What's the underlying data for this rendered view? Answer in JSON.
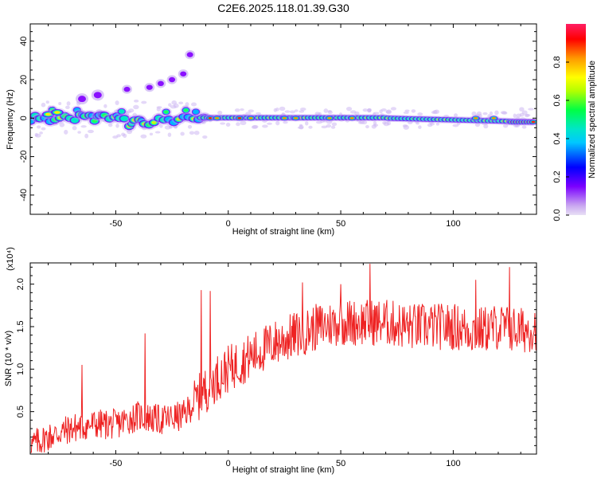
{
  "figure": {
    "title": "C2E6.2025.118.01.39.G30"
  },
  "chart_data": [
    {
      "type": "heatmap",
      "title": "C2E6.2025.118.01.39.G30",
      "xlabel": "Height of straight line (km)",
      "ylabel": "Frequency (Hz)",
      "xlim": [
        -88,
        137
      ],
      "ylim": [
        -50,
        49
      ],
      "xticks": [
        -50,
        0,
        50,
        100
      ],
      "yticks": [
        -40,
        -20,
        0,
        20,
        40
      ],
      "grid": false,
      "colorbar": {
        "label": "Normalized spectral amplitude",
        "ticks": [
          "0.0",
          "0.2",
          "0.4",
          "0.6",
          "0.8"
        ],
        "range": [
          0,
          1
        ],
        "colormap": [
          "#d6c2f0",
          "#7a00ff",
          "#0000ff",
          "#00d9ff",
          "#00ff66",
          "#ffff00",
          "#ff0000"
        ]
      },
      "features": {
        "main_band_center_hz": 0,
        "main_band_extent_km": [
          -88,
          136
        ],
        "harmonic_track": [
          {
            "x": -65,
            "y": 10
          },
          {
            "x": -58,
            "y": 12
          },
          {
            "x": -45,
            "y": 15
          },
          {
            "x": -35,
            "y": 16
          },
          {
            "x": -30,
            "y": 18
          },
          {
            "x": -25,
            "y": 20
          },
          {
            "x": -20,
            "y": 23
          },
          {
            "x": -17,
            "y": 33
          }
        ]
      }
    },
    {
      "type": "line",
      "xlabel": "Height of straight line (km)",
      "ylabel": "SNR (10 * v/v)",
      "y_multiplier": "(x10⁴)",
      "xlim": [
        -88,
        137
      ],
      "ylim": [
        0,
        2.25
      ],
      "xticks": [
        -50,
        0,
        50,
        100
      ],
      "yticks": [
        "0.5",
        "1.0",
        "1.5",
        "2.0"
      ],
      "grid": false,
      "color": "#ee2222",
      "series_envelope": [
        {
          "x": -88,
          "y": 0.1
        },
        {
          "x": -80,
          "y": 0.2
        },
        {
          "x": -70,
          "y": 0.3
        },
        {
          "x": -60,
          "y": 0.35
        },
        {
          "x": -50,
          "y": 0.35
        },
        {
          "x": -40,
          "y": 0.45
        },
        {
          "x": -30,
          "y": 0.4
        },
        {
          "x": -20,
          "y": 0.45
        },
        {
          "x": -12,
          "y": 0.7
        },
        {
          "x": -5,
          "y": 0.9
        },
        {
          "x": 0,
          "y": 1.0
        },
        {
          "x": 10,
          "y": 1.15
        },
        {
          "x": 20,
          "y": 1.3
        },
        {
          "x": 30,
          "y": 1.4
        },
        {
          "x": 40,
          "y": 1.5
        },
        {
          "x": 50,
          "y": 1.55
        },
        {
          "x": 60,
          "y": 1.55
        },
        {
          "x": 70,
          "y": 1.55
        },
        {
          "x": 80,
          "y": 1.5
        },
        {
          "x": 90,
          "y": 1.5
        },
        {
          "x": 100,
          "y": 1.5
        },
        {
          "x": 110,
          "y": 1.45
        },
        {
          "x": 120,
          "y": 1.5
        },
        {
          "x": 130,
          "y": 1.45
        },
        {
          "x": 137,
          "y": 1.5
        }
      ],
      "peaks": [
        {
          "x": -65,
          "y": 1.05
        },
        {
          "x": -37,
          "y": 1.42
        },
        {
          "x": -12,
          "y": 1.93
        },
        {
          "x": -8,
          "y": 1.92
        },
        {
          "x": 33,
          "y": 2.02
        },
        {
          "x": 50,
          "y": 2.0
        },
        {
          "x": 63,
          "y": 2.25
        },
        {
          "x": 110,
          "y": 2.05
        },
        {
          "x": 125,
          "y": 2.2
        }
      ]
    }
  ]
}
